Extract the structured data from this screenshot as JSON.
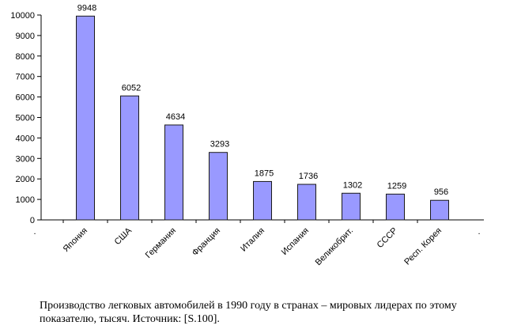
{
  "chart_data": {
    "type": "bar",
    "categories": [
      "Япония",
      "США",
      "Германия",
      "Франция",
      "Италия",
      "Испания",
      "Великобрит.",
      "СССР",
      "Респ. Корея"
    ],
    "values": [
      9948,
      6052,
      4634,
      3293,
      1875,
      1736,
      1302,
      1259,
      956
    ],
    "data_labels": [
      "9948",
      "6052",
      "4634",
      "3293",
      "1875",
      "1736",
      "1302",
      "1259",
      "956"
    ],
    "y_ticks": [
      "0",
      "1000",
      "2000",
      "3000",
      "4000",
      "5000",
      "6000",
      "7000",
      "8000",
      "9000",
      "10000"
    ],
    "ylim": [
      0,
      10000
    ],
    "grid": false,
    "legend": "none",
    "edge_labels": [
      ".",
      "."
    ],
    "colors": {
      "bar_fill": "#9999ff",
      "bar_stroke": "#1a1a1a",
      "axis": "#000000"
    }
  },
  "caption": {
    "line1": "Производство легковых автомобилей в 1990 году в странах – мировых лидерах по этому",
    "line2": "показателю, тысяч.  Источник: [S.100]."
  }
}
